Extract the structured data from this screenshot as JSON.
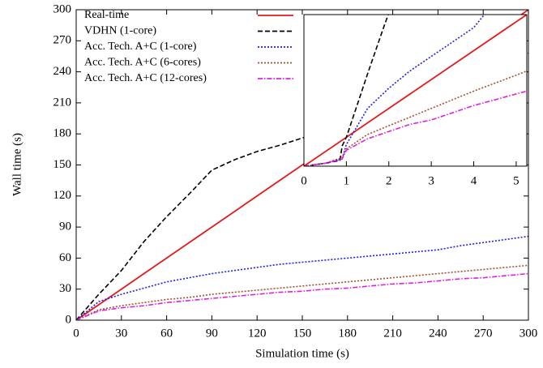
{
  "chart_data": [
    {
      "type": "line",
      "x_label": "Simulation time (s)",
      "y_label": "Wall time (s)",
      "xlim": [
        0,
        300
      ],
      "ylim": [
        0,
        300
      ],
      "xticks": [
        0,
        30,
        60,
        90,
        120,
        150,
        180,
        210,
        240,
        270,
        300
      ],
      "yticks": [
        0,
        30,
        60,
        90,
        120,
        150,
        180,
        210,
        240,
        270,
        300
      ],
      "legend": "upper left",
      "x": [
        0,
        15,
        30,
        45,
        60,
        75,
        90,
        105,
        120,
        135,
        150,
        165,
        180,
        195,
        210,
        225,
        240,
        255,
        270,
        285,
        300
      ],
      "series": [
        {
          "name": "Real-time",
          "color": "#e41a1c",
          "dash": "solid",
          "values": [
            0,
            15,
            30,
            45,
            60,
            75,
            90,
            105,
            120,
            135,
            150,
            165,
            180,
            195,
            210,
            225,
            240,
            255,
            270,
            285,
            300
          ]
        },
        {
          "name": "VDHN (1-core)",
          "color": "#000000",
          "dash": "dashed",
          "values": [
            0,
            25,
            48,
            76,
            100,
            122,
            145,
            155,
            163,
            169,
            176,
            185,
            195,
            205,
            214,
            222,
            230,
            238,
            246,
            252,
            258
          ]
        },
        {
          "name": "Acc. Tech. A+C (1-core)",
          "color": "#1f1fe6",
          "dash": "dotted",
          "values": [
            0,
            18,
            25,
            31,
            37,
            41,
            45,
            48,
            51,
            54,
            56,
            58,
            60,
            62,
            64,
            66,
            68,
            72,
            75,
            78,
            81
          ]
        },
        {
          "name": "Acc. Tech. A+C (6-cores)",
          "color": "#a0522d",
          "dash": "dotted",
          "values": [
            0,
            10,
            14,
            17,
            20,
            22,
            25,
            27,
            29,
            31,
            33,
            35,
            37,
            39,
            41,
            43,
            45,
            47,
            49,
            51,
            53
          ]
        },
        {
          "name": "Acc. Tech. A+C (12-cores)",
          "color": "#e020e0",
          "dash": "dashdot",
          "values": [
            0,
            9,
            12,
            14,
            17,
            19,
            21,
            23,
            25,
            27,
            28,
            30,
            31,
            33,
            35,
            36,
            38,
            40,
            41,
            43,
            45
          ]
        }
      ]
    },
    {
      "type": "line",
      "xlim": [
        0,
        5.25
      ],
      "ylim": [
        0,
        5.25
      ],
      "xticks": [
        0,
        1,
        2,
        3,
        4,
        5
      ],
      "series": [
        {
          "color": "#e41a1c",
          "dash": "solid",
          "x": [
            0,
            5.25
          ],
          "values": [
            0,
            5.25
          ]
        },
        {
          "color": "#000000",
          "dash": "dashed",
          "x": [
            0,
            0.5,
            0.85,
            0.9,
            1,
            1.5,
            1.9,
            2
          ],
          "values": [
            0,
            0.1,
            0.2,
            0.7,
            1.0,
            3.2,
            4.9,
            5.3
          ]
        },
        {
          "color": "#1f1fe6",
          "dash": "dotted",
          "x": [
            0,
            0.5,
            0.9,
            1,
            1.5,
            2,
            2.5,
            3,
            3.5,
            4,
            4.25
          ],
          "values": [
            0,
            0.1,
            0.25,
            0.75,
            2.0,
            2.7,
            3.3,
            3.8,
            4.3,
            4.8,
            5.25
          ]
        },
        {
          "color": "#a0522d",
          "dash": "dotted",
          "x": [
            0,
            0.5,
            0.9,
            1,
            1.5,
            2,
            2.5,
            3,
            4,
            5,
            5.25
          ],
          "values": [
            0,
            0.1,
            0.3,
            0.6,
            1.1,
            1.4,
            1.7,
            2.0,
            2.6,
            3.15,
            3.3
          ]
        },
        {
          "color": "#e020e0",
          "dash": "dashdot",
          "x": [
            0,
            0.5,
            0.9,
            1,
            1.5,
            2,
            2.5,
            3,
            4,
            5,
            5.25
          ],
          "values": [
            0,
            0.1,
            0.25,
            0.55,
            0.95,
            1.2,
            1.45,
            1.6,
            2.1,
            2.5,
            2.6
          ]
        }
      ]
    }
  ]
}
